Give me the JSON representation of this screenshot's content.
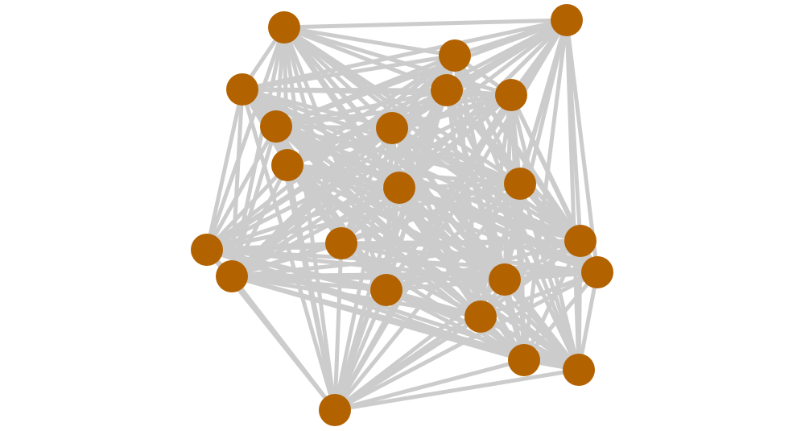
{
  "diagram": {
    "type": "network-graph",
    "connectivity": "complete",
    "node_color": "#b36200",
    "edge_color": "#cccccc",
    "background_color": "#ffffff",
    "node_shape": "circle",
    "labels_shown": false
  }
}
